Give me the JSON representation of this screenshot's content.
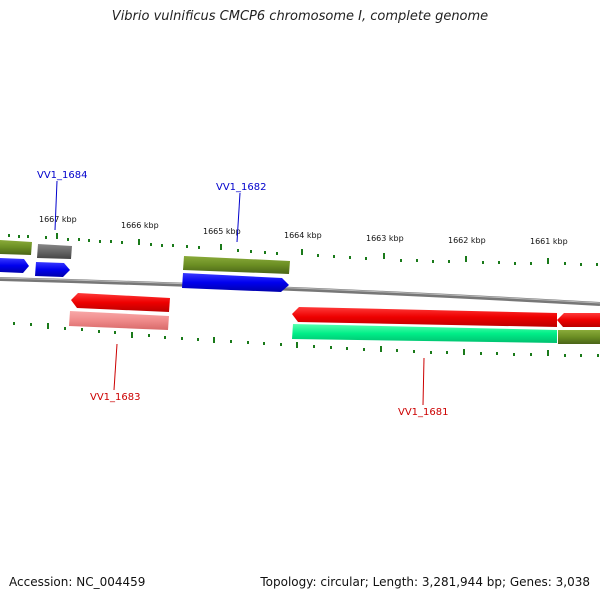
{
  "title": "Vibrio vulnificus CMCP6 chromosome I, complete genome",
  "footer": {
    "accession": "Accession: NC_004459",
    "topology": "Topology: circular; Length: 3,281,944 bp; Genes: 3,038"
  },
  "ruler": {
    "labels": [
      "1667 kbp",
      "1666 kbp",
      "1665 kbp",
      "1664 kbp",
      "1663 kbp",
      "1662 kbp",
      "1661 kbp"
    ]
  },
  "gene_labels": {
    "vv1_1684": "VV1_1684",
    "vv1_1682": "VV1_1682",
    "vv1_1683": "VV1_1683",
    "vv1_1681": "VV1_1681"
  },
  "colors": {
    "forward_cds": "#0000ee",
    "reverse_cds": "#ee0000",
    "forward_gene": "#6b8e23",
    "reverse_gene": "#555555",
    "highlight_reverse": "#00ee88",
    "pink_feature": "#ef8a8a",
    "backbone": "#888888",
    "tick": "#1a7a1a"
  }
}
